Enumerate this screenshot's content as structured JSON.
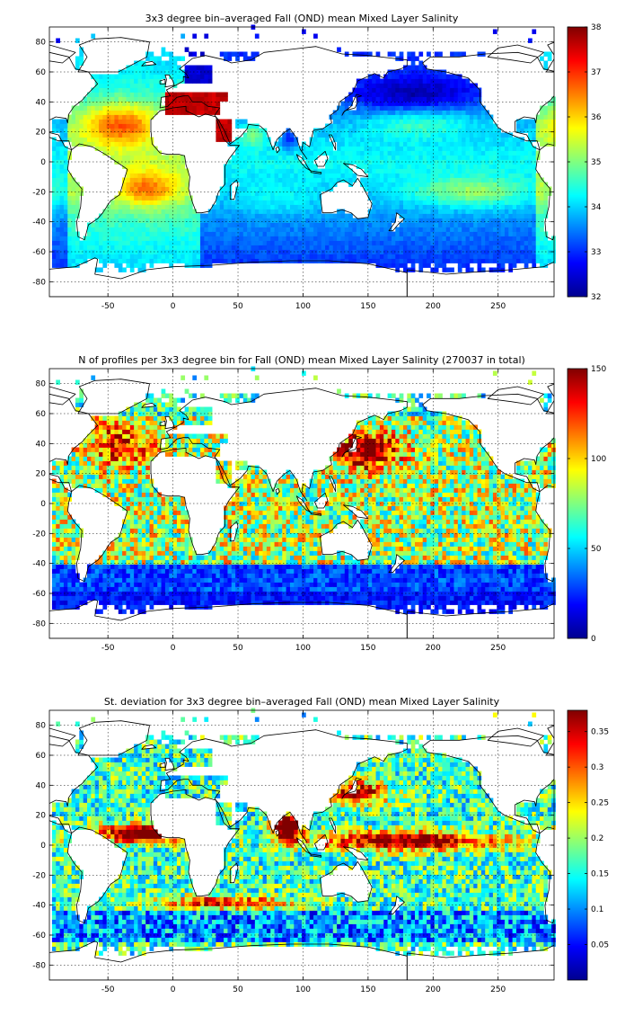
{
  "chart_data": [
    {
      "type": "heatmap",
      "title": "3x3 degree bin–averaged Fall (OND) mean Mixed Layer Salinity",
      "xlim": [
        -95,
        293
      ],
      "ylim": [
        -90,
        90
      ],
      "xticks": [
        -50,
        0,
        50,
        100,
        150,
        200,
        250
      ],
      "yticks": [
        -80,
        -60,
        -40,
        -20,
        0,
        20,
        40,
        60,
        80
      ],
      "grid": true,
      "colormap": "jet",
      "colorbar": {
        "range": [
          32,
          38
        ],
        "ticks": [
          32,
          33,
          34,
          35,
          36,
          37,
          38
        ],
        "tick_labels": [
          "32",
          "33",
          "34",
          "35",
          "36",
          "37",
          "38"
        ]
      },
      "field": "salinity"
    },
    {
      "type": "heatmap",
      "title": "N of profiles per 3x3 degree bin for Fall (OND) mean Mixed Layer Salinity  (270037 in total)",
      "xlim": [
        -95,
        293
      ],
      "ylim": [
        -90,
        90
      ],
      "xticks": [
        -50,
        0,
        50,
        100,
        150,
        200,
        250
      ],
      "yticks": [
        -80,
        -60,
        -40,
        -20,
        0,
        20,
        40,
        60,
        80
      ],
      "grid": true,
      "colormap": "jet",
      "colorbar": {
        "range": [
          0,
          150
        ],
        "ticks": [
          0,
          50,
          100,
          150
        ],
        "tick_labels": [
          "0",
          "50",
          "100",
          "150"
        ]
      },
      "field": "count"
    },
    {
      "type": "heatmap",
      "title": "St. deviation for 3x3 degree bin–averaged Fall (OND) mean Mixed Layer Salinity",
      "xlim": [
        -95,
        293
      ],
      "ylim": [
        -90,
        90
      ],
      "xticks": [
        -50,
        0,
        50,
        100,
        150,
        200,
        250
      ],
      "yticks": [
        -80,
        -60,
        -40,
        -20,
        0,
        20,
        40,
        60,
        80
      ],
      "grid": true,
      "colormap": "jet",
      "colorbar": {
        "range": [
          0,
          0.38
        ],
        "ticks": [
          0.05,
          0.1,
          0.15,
          0.2,
          0.25,
          0.3,
          0.35
        ],
        "tick_labels": [
          "0.05",
          "0.1",
          "0.15",
          "0.2",
          "0.25",
          "0.3",
          "0.35"
        ]
      },
      "field": "stdev"
    }
  ]
}
